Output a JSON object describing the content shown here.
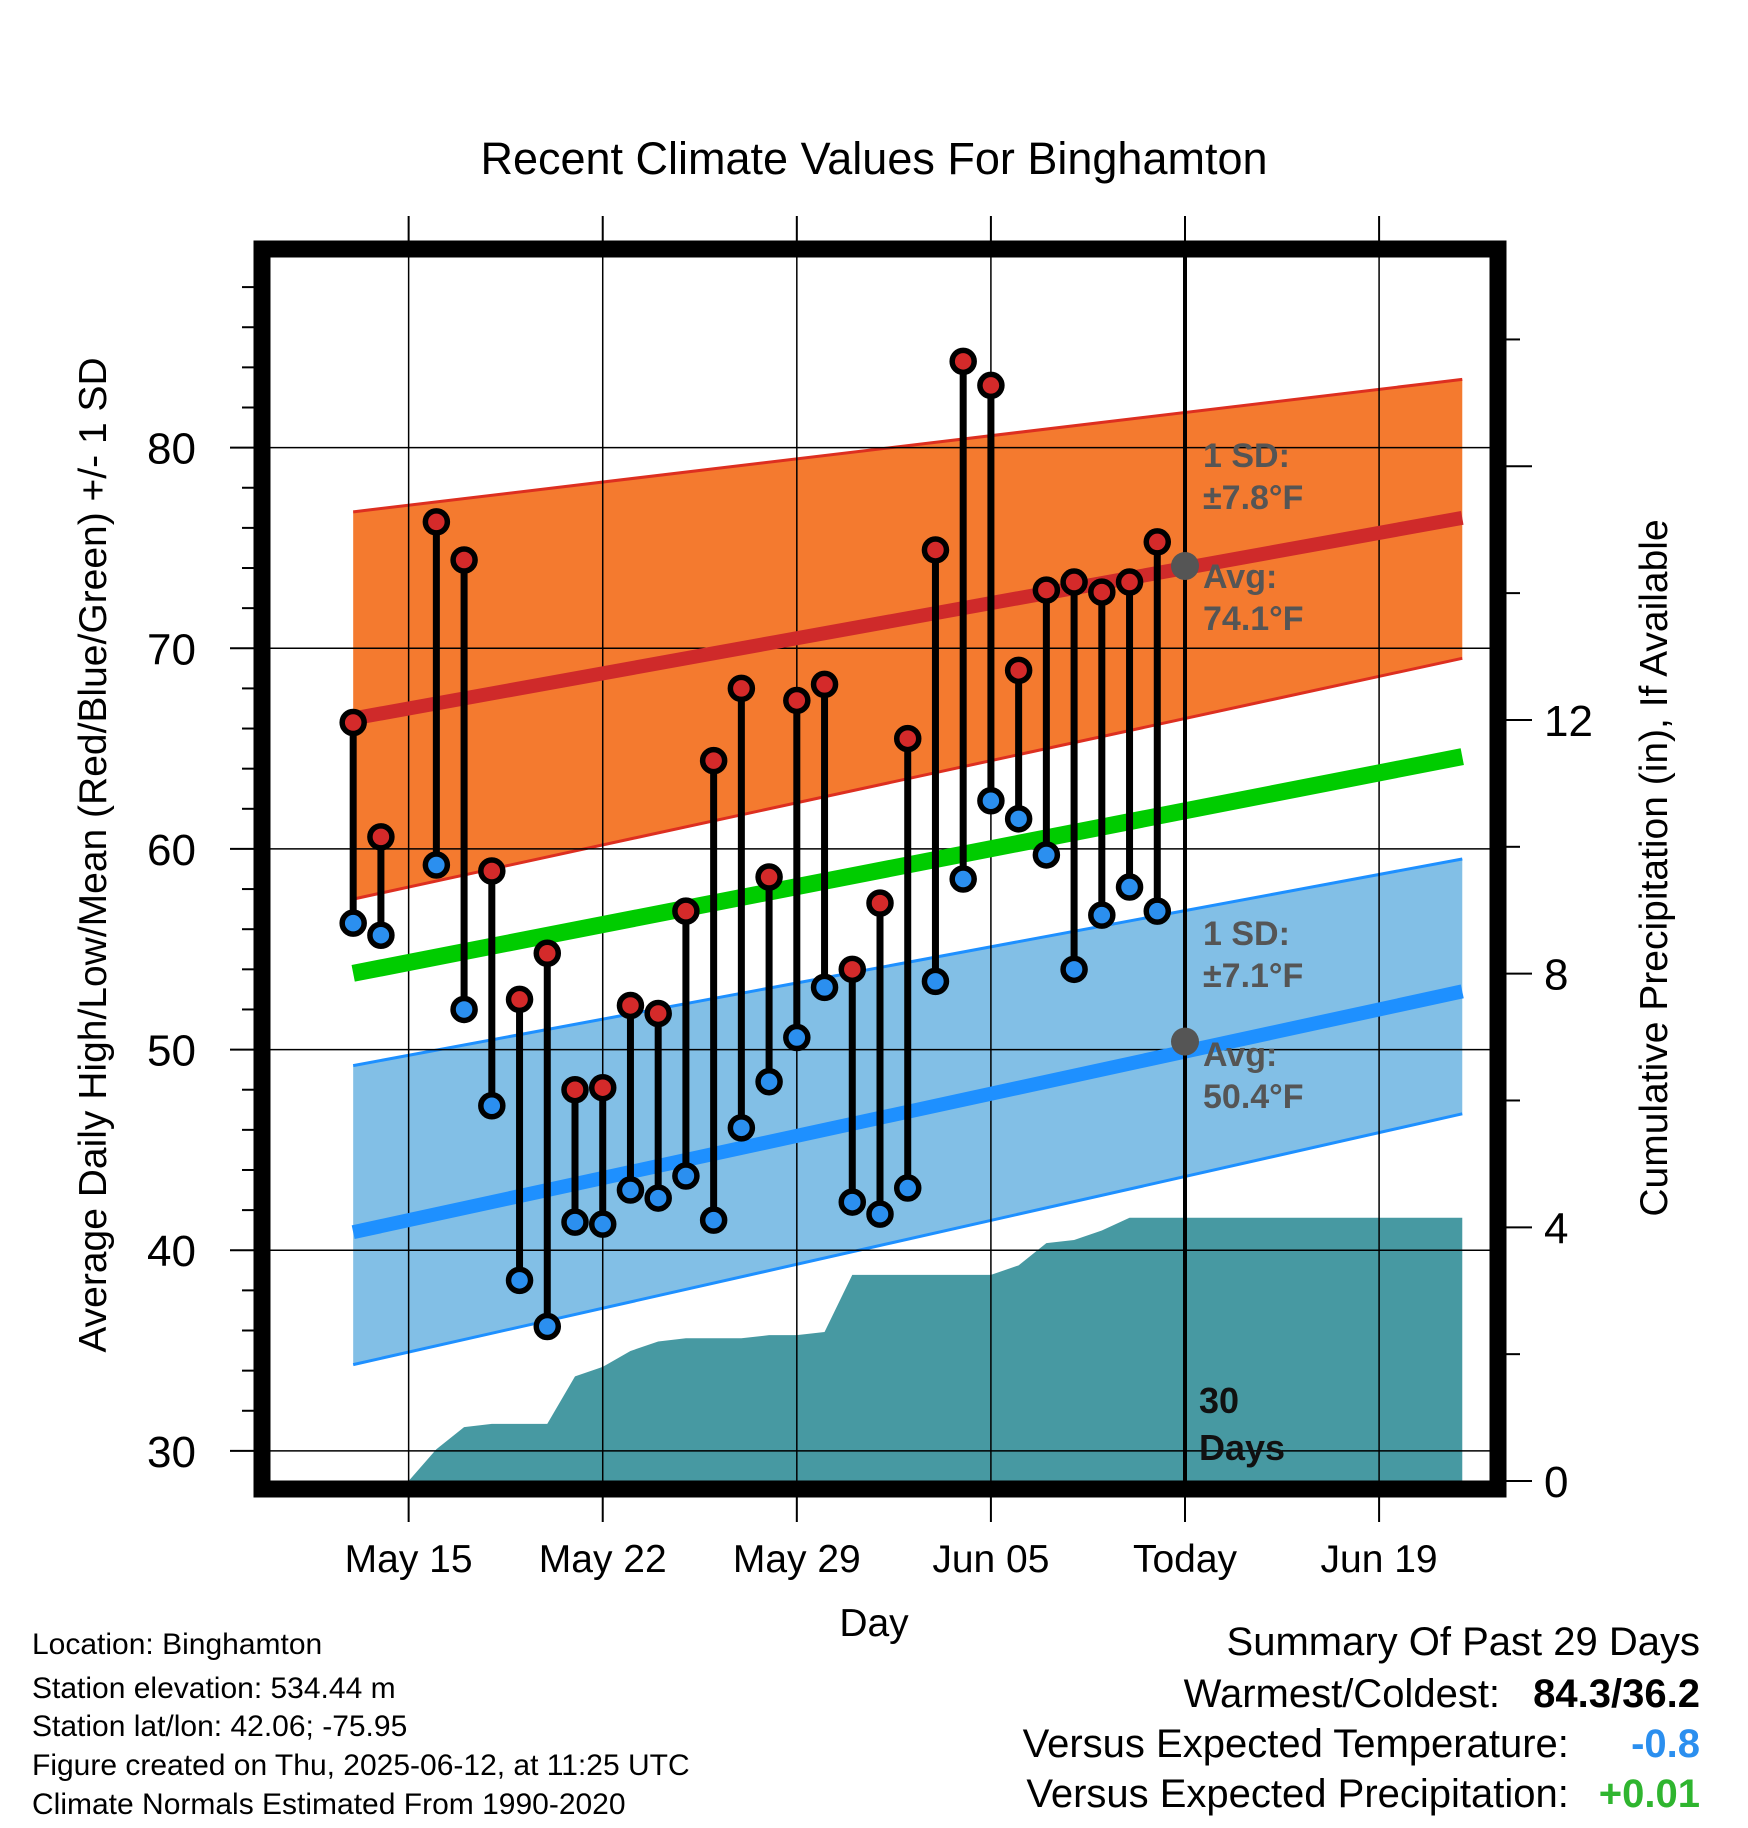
{
  "chart_data": {
    "type": "line",
    "title": "Recent Climate Values For Binghamton",
    "xlabel": "Day",
    "ylabel": "Average Daily High/Low/Mean (Red/Blue/Green) +/- 1 SD",
    "y2label": "Cumulative Precipitation (in), If Available",
    "ylim": [
      28.5,
      89.5
    ],
    "y2lim": [
      0,
      19.3
    ],
    "xlim": [
      "2025-05-10",
      "2025-06-23"
    ],
    "x_ticks": [
      {
        "date": "2025-05-15",
        "label": "May 15"
      },
      {
        "date": "2025-05-22",
        "label": "May 22"
      },
      {
        "date": "2025-05-29",
        "label": "May 29"
      },
      {
        "date": "2025-06-05",
        "label": "Jun 05"
      },
      {
        "date": "2025-06-12",
        "label": "Today"
      },
      {
        "date": "2025-06-19",
        "label": "Jun 19"
      }
    ],
    "y_ticks": [
      30,
      40,
      50,
      60,
      70,
      80
    ],
    "y2_ticks": [
      0,
      4,
      8,
      12
    ],
    "grid": true,
    "today": "2025-06-12",
    "window_label": "30 Days",
    "normals_high": {
      "x": [
        "2025-05-13",
        "2025-06-22"
      ],
      "mean": [
        66.5,
        76.5
      ],
      "sd_low": [
        57.5,
        69.5
      ],
      "sd_high": [
        76.8,
        83.4
      ]
    },
    "normals_low": {
      "x": [
        "2025-05-13",
        "2025-06-22"
      ],
      "mean": [
        40.9,
        52.9
      ],
      "sd_low": [
        34.3,
        46.8
      ],
      "sd_high": [
        49.2,
        59.5
      ]
    },
    "normals_mean": {
      "x": [
        "2025-05-13",
        "2025-06-22"
      ],
      "values": [
        53.8,
        64.6
      ]
    },
    "today_high_annotation": {
      "sd_label": "1 SD:",
      "sd_value": "±7.8°F",
      "avg_label": "Avg:",
      "avg_value": "74.1°F",
      "avg": 74.1
    },
    "today_low_annotation": {
      "sd_label": "1 SD:",
      "sd_value": "±7.1°F",
      "avg_label": "Avg:",
      "avg_value": "50.4°F",
      "avg": 50.4
    },
    "daily": [
      {
        "date": "2025-05-13",
        "high": 66.3,
        "low": 56.3
      },
      {
        "date": "2025-05-14",
        "high": 60.6,
        "low": 55.7
      },
      {
        "date": "2025-05-16",
        "high": 76.3,
        "low": 59.2
      },
      {
        "date": "2025-05-17",
        "high": 74.4,
        "low": 52.0
      },
      {
        "date": "2025-05-18",
        "high": 58.9,
        "low": 47.2
      },
      {
        "date": "2025-05-19",
        "high": 52.5,
        "low": 38.5
      },
      {
        "date": "2025-05-20",
        "high": 54.8,
        "low": 36.2
      },
      {
        "date": "2025-05-21",
        "high": 48.0,
        "low": 41.4
      },
      {
        "date": "2025-05-22",
        "high": 48.1,
        "low": 41.3
      },
      {
        "date": "2025-05-23",
        "high": 52.2,
        "low": 43.0
      },
      {
        "date": "2025-05-24",
        "high": 51.8,
        "low": 42.6
      },
      {
        "date": "2025-05-25",
        "high": 56.9,
        "low": 43.7
      },
      {
        "date": "2025-05-26",
        "high": 64.4,
        "low": 41.5
      },
      {
        "date": "2025-05-27",
        "high": 68.0,
        "low": 46.1
      },
      {
        "date": "2025-05-28",
        "high": 58.6,
        "low": 48.4
      },
      {
        "date": "2025-05-29",
        "high": 67.4,
        "low": 50.6
      },
      {
        "date": "2025-05-30",
        "high": 68.2,
        "low": 53.1
      },
      {
        "date": "2025-05-31",
        "high": 54.0,
        "low": 42.4
      },
      {
        "date": "2025-06-01",
        "high": 57.3,
        "low": 41.8
      },
      {
        "date": "2025-06-02",
        "high": 65.5,
        "low": 43.1
      },
      {
        "date": "2025-06-03",
        "high": 74.9,
        "low": 53.4
      },
      {
        "date": "2025-06-04",
        "high": 84.3,
        "low": 58.5
      },
      {
        "date": "2025-06-05",
        "high": 83.1,
        "low": 62.4
      },
      {
        "date": "2025-06-06",
        "high": 68.9,
        "low": 61.5
      },
      {
        "date": "2025-06-07",
        "high": 72.9,
        "low": 59.7
      },
      {
        "date": "2025-06-08",
        "high": 73.3,
        "low": 54.0
      },
      {
        "date": "2025-06-09",
        "high": 72.8,
        "low": 56.7
      },
      {
        "date": "2025-06-10",
        "high": 73.3,
        "low": 58.1
      },
      {
        "date": "2025-06-11",
        "high": 75.3,
        "low": 56.9
      }
    ],
    "precip_cumulative": [
      {
        "date": "2025-05-13",
        "value": 0.0
      },
      {
        "date": "2025-05-14",
        "value": 0.0
      },
      {
        "date": "2025-05-15",
        "value": 0.0
      },
      {
        "date": "2025-05-16",
        "value": 0.5
      },
      {
        "date": "2025-05-17",
        "value": 0.85
      },
      {
        "date": "2025-05-18",
        "value": 0.9
      },
      {
        "date": "2025-05-19",
        "value": 0.9
      },
      {
        "date": "2025-05-20",
        "value": 0.9
      },
      {
        "date": "2025-05-21",
        "value": 1.65
      },
      {
        "date": "2025-05-22",
        "value": 1.8
      },
      {
        "date": "2025-05-23",
        "value": 2.05
      },
      {
        "date": "2025-05-24",
        "value": 2.2
      },
      {
        "date": "2025-05-25",
        "value": 2.25
      },
      {
        "date": "2025-05-26",
        "value": 2.25
      },
      {
        "date": "2025-05-27",
        "value": 2.25
      },
      {
        "date": "2025-05-28",
        "value": 2.3
      },
      {
        "date": "2025-05-29",
        "value": 2.3
      },
      {
        "date": "2025-05-30",
        "value": 2.35
      },
      {
        "date": "2025-05-31",
        "value": 3.25
      },
      {
        "date": "2025-06-01",
        "value": 3.25
      },
      {
        "date": "2025-06-02",
        "value": 3.25
      },
      {
        "date": "2025-06-03",
        "value": 3.25
      },
      {
        "date": "2025-06-04",
        "value": 3.25
      },
      {
        "date": "2025-06-05",
        "value": 3.25
      },
      {
        "date": "2025-06-06",
        "value": 3.4
      },
      {
        "date": "2025-06-07",
        "value": 3.75
      },
      {
        "date": "2025-06-08",
        "value": 3.8
      },
      {
        "date": "2025-06-09",
        "value": 3.95
      },
      {
        "date": "2025-06-10",
        "value": 4.15
      },
      {
        "date": "2025-06-11",
        "value": 4.15
      },
      {
        "date": "2025-06-12",
        "value": 4.15
      },
      {
        "date": "2025-06-22",
        "value": 4.15
      }
    ],
    "colors": {
      "high_band": "#f47a2f",
      "high_band_edge": "#dd2f20",
      "high_mean": "#cf2a2a",
      "low_band": "#82bfe6",
      "low_band_edge": "#1e90ff",
      "low_mean": "#1e90ff",
      "mean_line": "#00cc00",
      "precip": "#4799a2",
      "high_marker": "#d42a2a",
      "low_marker": "#2b8fef",
      "annotation_text": "#555555"
    }
  },
  "info": {
    "location": "Location: Binghamton",
    "elevation": "Station elevation: 534.44 m",
    "latlon": "Station lat/lon: 42.06; -75.95",
    "created": "Figure created on Thu, 2025-06-12, at 11:25 UTC",
    "normals": "Climate Normals Estimated From 1990-2020"
  },
  "summary": {
    "title": "Summary Of Past 29 Days",
    "warm_cold_label": "Warmest/Coldest:",
    "warm_cold_value": "84.3/36.2",
    "temp_label": "Versus Expected Temperature:",
    "temp_value": "-0.8",
    "temp_color": "#2b8fef",
    "precip_label": "Versus Expected Precipitation:",
    "precip_value": "+0.01",
    "precip_color": "#2fb52f"
  }
}
